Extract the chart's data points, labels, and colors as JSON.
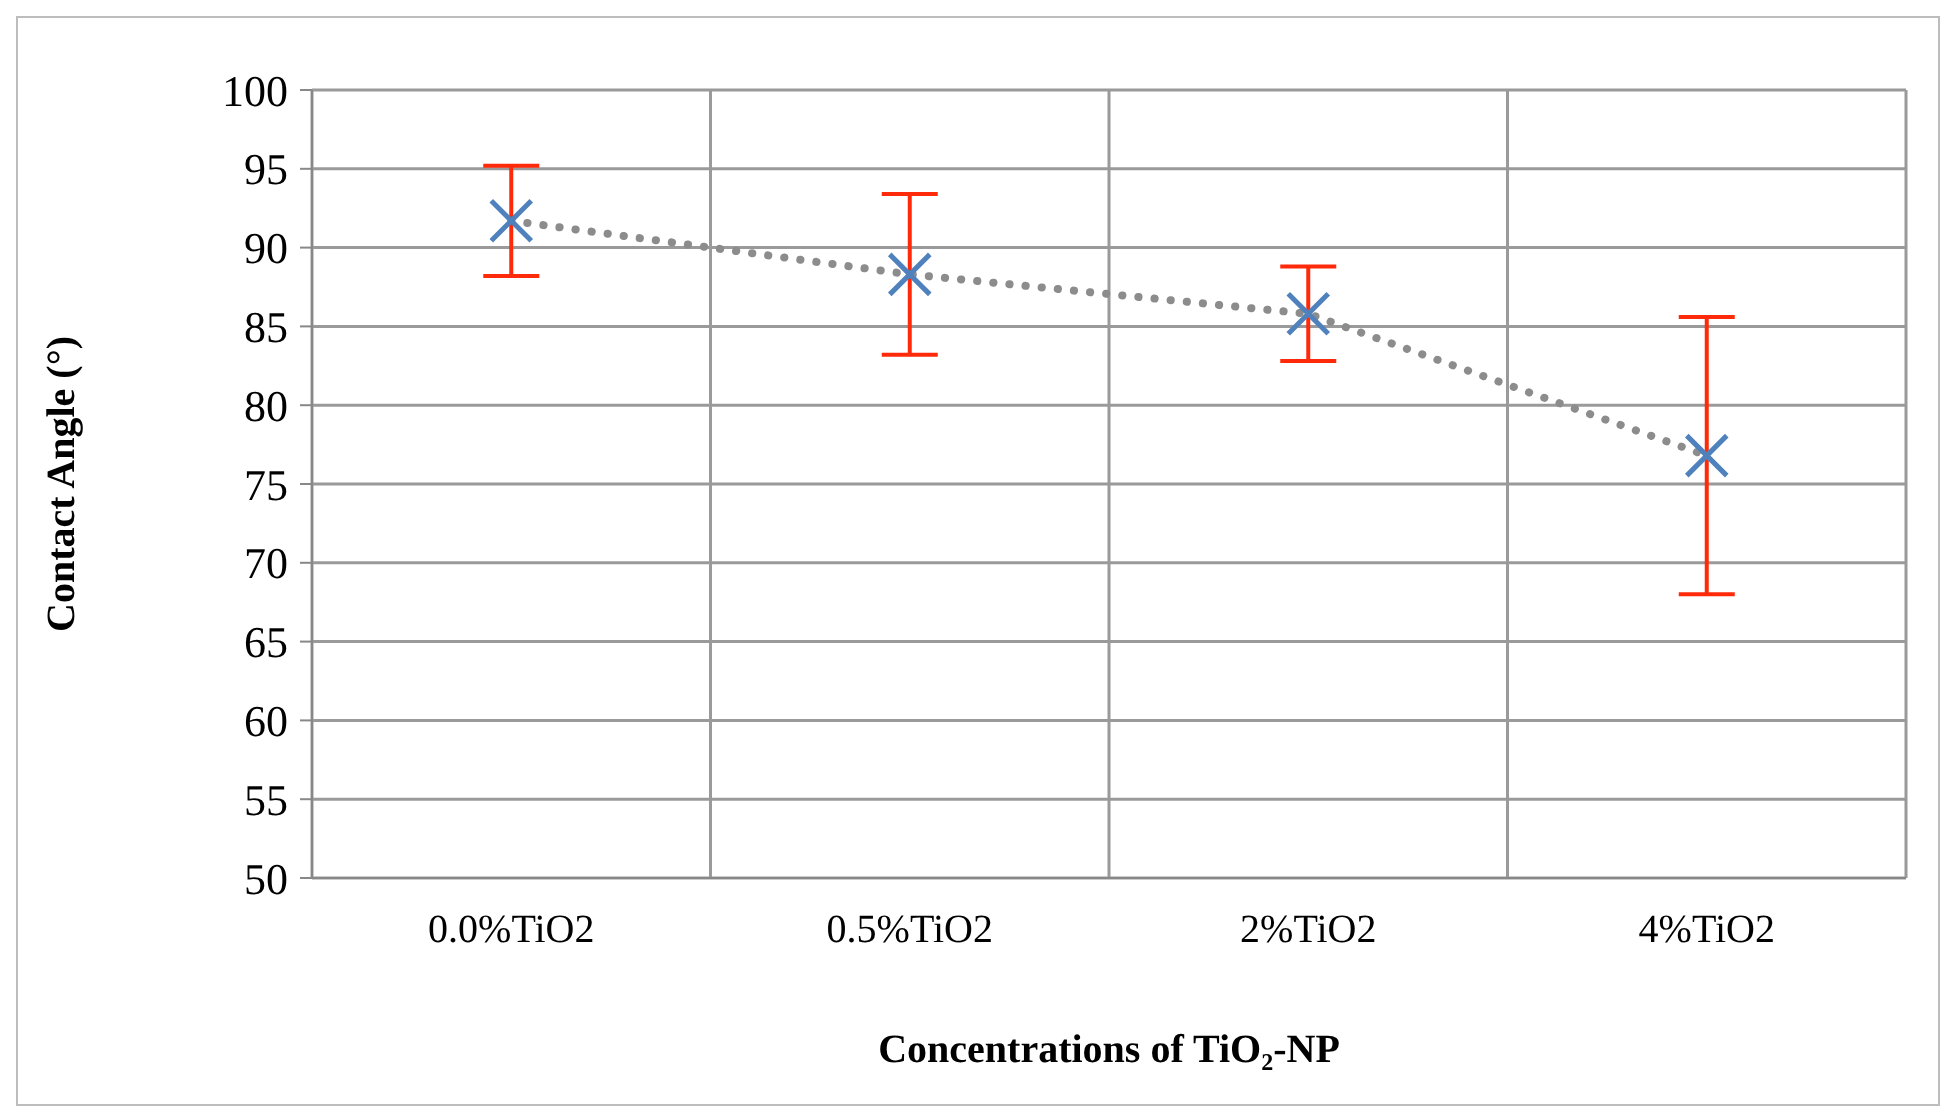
{
  "chart_data": {
    "type": "scatter",
    "xlabel": "Concentrations of TiO₂-NP",
    "ylabel": "Contact Angle (°)",
    "categories": [
      "0.0%TiO2",
      "0.5%TiO2",
      "2%TiO2",
      "4%TiO2"
    ],
    "ylim": [
      50,
      100
    ],
    "yticks": [
      50,
      55,
      60,
      65,
      70,
      75,
      80,
      85,
      90,
      95,
      100
    ],
    "grid": true,
    "series": [
      {
        "type": "line",
        "color": "#8c8c8c",
        "values": [
          91.7,
          88.3,
          85.8,
          76.8
        ],
        "line_style": "dotted"
      },
      {
        "color": "#4f81bd",
        "values": [
          91.7,
          88.3,
          85.8,
          76.8
        ],
        "errors": [
          3.5,
          5.1,
          3.0,
          8.8
        ],
        "marker": "cross"
      }
    ]
  }
}
